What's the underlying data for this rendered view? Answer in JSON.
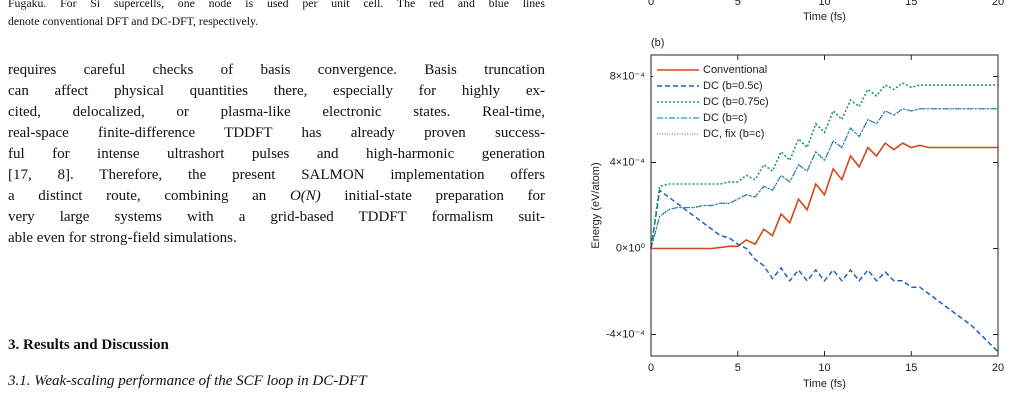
{
  "paper": {
    "caption": [
      "Fugaku. For Si supercells, one node is used per unit cell. The red and blue lines",
      "denote conventional DFT and DC-DFT, respectively."
    ],
    "paragraph": [
      "requires careful checks of basis convergence. Basis truncation",
      "can affect physical quantities there, especially for highly ex-",
      "cited, delocalized, or plasma-like electronic states. Real-time,",
      "real-space finite-difference TDDFT has already proven success-",
      "ful for intense ultrashort pulses and high-harmonic generation",
      "[17, 8]. Therefore, the present SALMON implementation offers",
      [
        "a distinct route, combining an ",
        "O(N)",
        " initial-state preparation for"
      ],
      "very large systems with a grid-based TDDFT formalism suit-",
      "able even for strong-field simulations."
    ],
    "heading": "3. Results and Discussion",
    "subheading": "3.1. Weak-scaling performance of the SCF loop in DC-DFT"
  },
  "chart_data": [
    {
      "type": "line",
      "xlabel": "Time (fs)",
      "xlim": [
        0,
        20
      ],
      "xticks": [
        0,
        5,
        10,
        15,
        20
      ]
    },
    {
      "type": "line",
      "panel_label": "(b)",
      "xlabel": "Time (fs)",
      "ylabel": "Energy (eV/atom)",
      "xlim": [
        0,
        20
      ],
      "ylim": [
        -0.0005,
        0.0009
      ],
      "xticks": [
        0,
        5,
        10,
        15,
        20
      ],
      "yticks": [
        {
          "value": -0.0004,
          "label": "-4×10⁻⁴"
        },
        {
          "value": 0,
          "label": "0×10⁰"
        },
        {
          "value": 0.0004,
          "label": "4×10⁻⁴"
        },
        {
          "value": 0.0008,
          "label": "8×10⁻⁴"
        }
      ],
      "legend": "upper left",
      "x": [
        0,
        0.5,
        1,
        1.5,
        2,
        2.5,
        3,
        3.5,
        4,
        4.5,
        5,
        5.5,
        6,
        6.5,
        7,
        7.5,
        8,
        8.5,
        9,
        9.5,
        10,
        10.5,
        11,
        11.5,
        12,
        12.5,
        13,
        13.5,
        14,
        14.5,
        15,
        15.5,
        16,
        16.5,
        17,
        17.5,
        18,
        18.5,
        19,
        19.5,
        20
      ],
      "series": [
        {
          "name": "Conventional",
          "color": "#d24a1c",
          "dash": "none",
          "width": 1.6,
          "values": [
            0,
            0,
            0,
            0,
            0,
            0,
            0,
            0,
            5e-06,
            1e-05,
            1e-05,
            4e-05,
            2e-05,
            9e-05,
            6e-05,
            0.00016,
            0.00012,
            0.00023,
            0.00018,
            0.0003,
            0.00025,
            0.00037,
            0.00032,
            0.00043,
            0.00038,
            0.00047,
            0.00043,
            0.00049,
            0.00046,
            0.00049,
            0.00047,
            0.00048,
            0.00047,
            0.00047,
            0.00047,
            0.00047,
            0.00047,
            0.00047,
            0.00047,
            0.00047,
            0.00047
          ]
        },
        {
          "name": "DC (b=0.5c)",
          "color": "#1f5fc4",
          "dash": "5,3",
          "width": 1.5,
          "values": [
            0,
            0.00027,
            0.00024,
            0.00021,
            0.00018,
            0.00015,
            0.00012,
            9e-05,
            6e-05,
            5e-05,
            2e-05,
            0,
            -5e-05,
            -8e-05,
            -0.00014,
            -9e-05,
            -0.00015,
            -0.0001,
            -0.00015,
            -0.0001,
            -0.00015,
            -0.0001,
            -0.00015,
            -0.0001,
            -0.00015,
            -0.0001,
            -0.00015,
            -0.00011,
            -0.00015,
            -0.00015,
            -0.00018,
            -0.00018,
            -0.00021,
            -0.00024,
            -0.00027,
            -0.0003,
            -0.00033,
            -0.00036,
            -0.0004,
            -0.00044,
            -0.00048
          ]
        },
        {
          "name": "DC (b=0.75c)",
          "color": "#1a9c5a",
          "dash": "2,2",
          "width": 1.6,
          "values": [
            0,
            0.00029,
            0.0003,
            0.0003,
            0.0003,
            0.0003,
            0.0003,
            0.0003,
            0.0003,
            0.00031,
            0.00031,
            0.00034,
            0.00032,
            0.00039,
            0.00036,
            0.00045,
            0.00041,
            0.00051,
            0.00047,
            0.00058,
            0.00054,
            0.00064,
            0.0006,
            0.00069,
            0.00066,
            0.00074,
            0.00071,
            0.00076,
            0.00074,
            0.00077,
            0.00075,
            0.00076,
            0.00076,
            0.00076,
            0.00076,
            0.00076,
            0.00076,
            0.00076,
            0.00076,
            0.00076,
            0.00076
          ]
        },
        {
          "name": "DC (b=c)",
          "color": "#3aaee0",
          "dash": "6,2,2,2",
          "width": 1.4,
          "values": [
            0,
            0.00015,
            0.00018,
            0.00019,
            0.00019,
            0.00019,
            0.0002,
            0.0002,
            0.00021,
            0.00021,
            0.00023,
            0.00025,
            0.00024,
            0.00029,
            0.00027,
            0.00034,
            0.00031,
            0.00039,
            0.00036,
            0.00045,
            0.00041,
            0.0005,
            0.00047,
            0.00056,
            0.00052,
            0.0006,
            0.00058,
            0.00064,
            0.00062,
            0.00065,
            0.00064,
            0.00065,
            0.00065,
            0.00065,
            0.00065,
            0.00065,
            0.00065,
            0.00065,
            0.00065,
            0.00065,
            0.00065
          ]
        },
        {
          "name": "DC, fix (b=c)",
          "color": "#333333",
          "dash": "1,1.5",
          "width": 0.8,
          "values": [
            0,
            0.00015,
            0.00018,
            0.00019,
            0.00019,
            0.00019,
            0.0002,
            0.0002,
            0.00021,
            0.00021,
            0.00023,
            0.00025,
            0.00024,
            0.00029,
            0.00027,
            0.00034,
            0.00031,
            0.00039,
            0.00036,
            0.00045,
            0.00041,
            0.0005,
            0.00047,
            0.00056,
            0.00052,
            0.0006,
            0.00058,
            0.00064,
            0.00062,
            0.00065,
            0.00064,
            0.00065,
            0.00065,
            0.00065,
            0.00065,
            0.00065,
            0.00065,
            0.00065,
            0.00065,
            0.00065,
            0.00065
          ]
        }
      ]
    }
  ]
}
